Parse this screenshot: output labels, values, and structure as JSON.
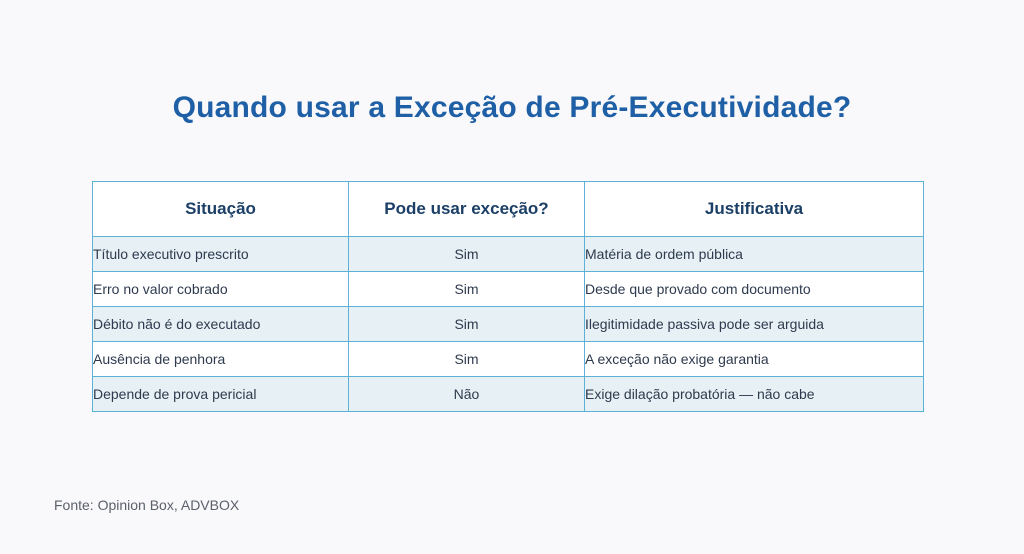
{
  "title": "Quando usar a Exceção de Pré-Executividade?",
  "table": {
    "headers": [
      "Situação",
      "Pode usar exceção?",
      "Justificativa"
    ],
    "rows": [
      [
        "Título executivo prescrito",
        "Sim",
        "Matéria de ordem pública"
      ],
      [
        "Erro no valor cobrado",
        "Sim",
        "Desde que provado com documento"
      ],
      [
        "Débito não é do executado",
        "Sim",
        "Ilegitimidade passiva pode ser arguida"
      ],
      [
        "Ausência de penhora",
        "Sim",
        "A exceção não exige garantia"
      ],
      [
        "Depende de prova pericial",
        "Não",
        "Exige dilação probatória — não cabe"
      ]
    ]
  },
  "source": "Fonte: Opinion Box, ADVBOX",
  "colors": {
    "title": "#1e5fa6",
    "header_text": "#1b3f66",
    "border": "#5fb0d6",
    "row_shade": "#e6f0f5",
    "background": "#f9f9fb"
  }
}
